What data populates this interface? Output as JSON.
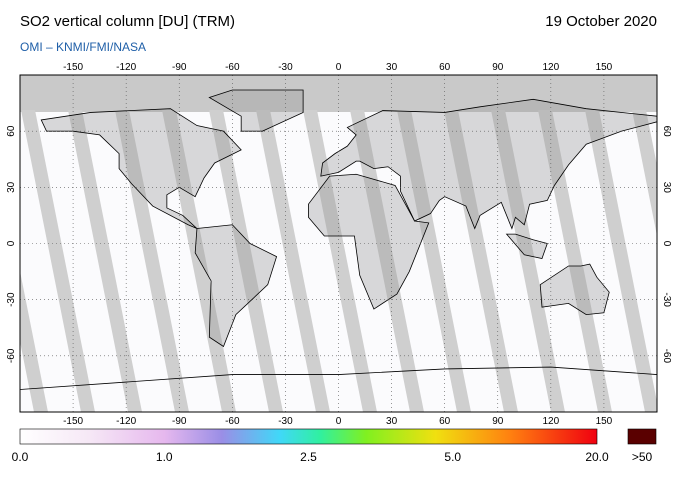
{
  "header": {
    "title": "SO2 vertical column [DU] (TRM)",
    "date": "19 October 2020",
    "source": "OMI  –  KNMI/FMI/NASA"
  },
  "map": {
    "lon_ticks": [
      -150,
      -120,
      -90,
      -60,
      -30,
      0,
      30,
      60,
      90,
      120,
      150
    ],
    "lat_ticks": [
      60,
      30,
      0,
      -30,
      -60
    ]
  },
  "colorbar": {
    "labels": [
      "0.0",
      "1.0",
      "2.5",
      "5.0",
      "20.0"
    ],
    "over_label": ">50"
  }
}
